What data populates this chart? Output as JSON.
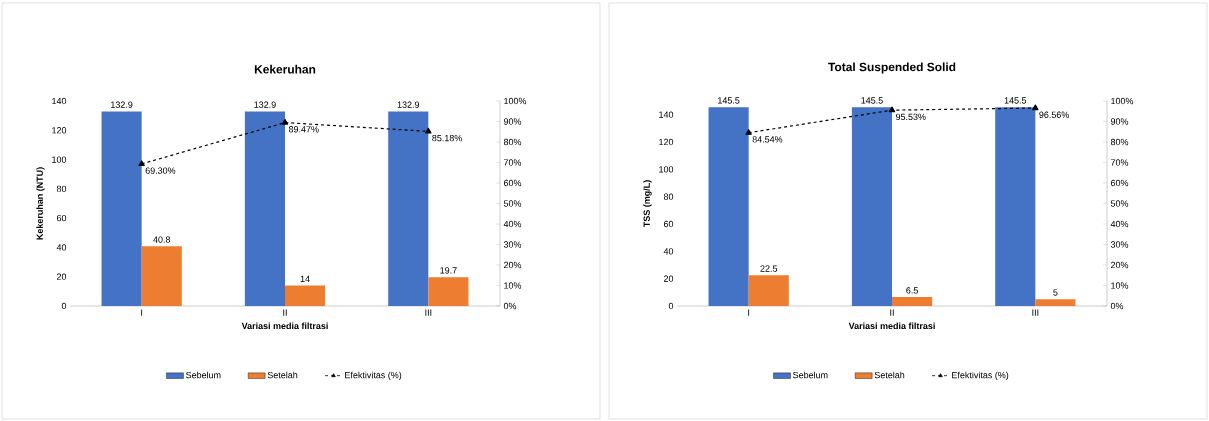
{
  "chart_data": [
    {
      "type": "bar",
      "title": "Kekeruhan",
      "xlabel": "Variasi  media filtrasi",
      "ylabel": "Kekeruhan (NTU)",
      "categories": [
        "I",
        "II",
        "III"
      ],
      "series": [
        {
          "name": "Sebelum",
          "color": "#4472c4",
          "values": [
            132.9,
            132.9,
            132.9
          ]
        },
        {
          "name": "Setelah",
          "color": "#ed7d31",
          "values": [
            40.8,
            14,
            19.7
          ]
        },
        {
          "name": "Efektivitas (%)",
          "type": "line",
          "axis": "y2",
          "color": "#000000",
          "marker": "triangle",
          "line_style": "dashed",
          "values": [
            69.3,
            89.47,
            85.18
          ],
          "value_labels": [
            "69.30%",
            "89.47%",
            "85.18%"
          ]
        }
      ],
      "ylim": [
        0,
        140
      ],
      "yticks": [
        0,
        20,
        40,
        60,
        80,
        100,
        120,
        140
      ],
      "y2lim": [
        0,
        100
      ],
      "y2ticks": [
        {
          "value": 0,
          "label": "0%"
        },
        {
          "value": 10,
          "label": "10%"
        },
        {
          "value": 20,
          "label": "20%"
        },
        {
          "value": 30,
          "label": "30%"
        },
        {
          "value": 40,
          "label": "40%"
        },
        {
          "value": 50,
          "label": "50%"
        },
        {
          "value": 60,
          "label": "60%"
        },
        {
          "value": 70,
          "label": "70%"
        },
        {
          "value": 80,
          "label": "80%"
        },
        {
          "value": 90,
          "label": "90%"
        },
        {
          "value": 100,
          "label": "100%"
        }
      ],
      "data_labels": true,
      "legend": "bottom"
    },
    {
      "type": "bar",
      "title": "Total Suspended Solid",
      "xlabel": "Variasi  media filtrasi",
      "ylabel": "TSS  (mg/L)",
      "categories": [
        "I",
        "II",
        "III"
      ],
      "series": [
        {
          "name": "Sebelum",
          "color": "#4472c4",
          "values": [
            145.5,
            145.5,
            145.5
          ]
        },
        {
          "name": "Setelah",
          "color": "#ed7d31",
          "values": [
            22.5,
            6.5,
            5
          ]
        },
        {
          "name": "Efektivitas (%)",
          "type": "line",
          "axis": "y2",
          "color": "#000000",
          "marker": "triangle",
          "line_style": "dashed",
          "values": [
            84.54,
            95.53,
            96.56
          ],
          "value_labels": [
            "84.54%",
            "95.53%",
            "96.56%"
          ]
        }
      ],
      "ylim": [
        0,
        150
      ],
      "yticks": [
        0,
        20,
        40,
        60,
        80,
        100,
        120,
        140
      ],
      "y2lim": [
        0,
        100
      ],
      "y2ticks": [
        {
          "value": 0,
          "label": "0%"
        },
        {
          "value": 10,
          "label": "10%"
        },
        {
          "value": 20,
          "label": "20%"
        },
        {
          "value": 30,
          "label": "30%"
        },
        {
          "value": 40,
          "label": "40%"
        },
        {
          "value": 50,
          "label": "50%"
        },
        {
          "value": 60,
          "label": "60%"
        },
        {
          "value": 70,
          "label": "70%"
        },
        {
          "value": 80,
          "label": "80%"
        },
        {
          "value": 90,
          "label": "90%"
        },
        {
          "value": 100,
          "label": "100%"
        }
      ],
      "data_labels": true,
      "legend": "bottom"
    }
  ]
}
